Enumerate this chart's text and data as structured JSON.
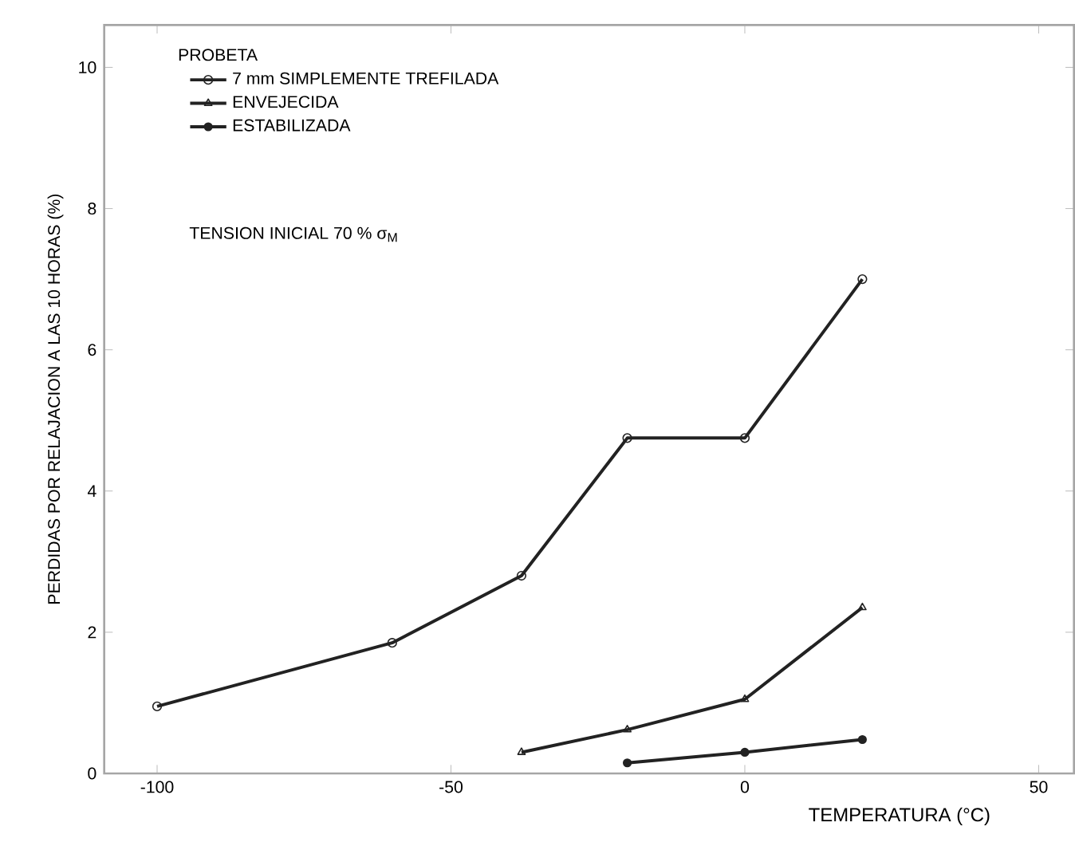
{
  "chart_data": {
    "type": "line",
    "xlabel": "TEMPERATURA (°C)",
    "ylabel": "PERDIDAS POR RELAJACION A LAS 10 HORAS (%)",
    "legend_title": "PROBETA",
    "legend": "top left",
    "annotations": [
      "TENSION INICIAL  70 % σ$_{M}$"
    ],
    "xlim": [
      -109,
      56
    ],
    "ylim": [
      0,
      10.6
    ],
    "xticks": [
      -100,
      -50,
      0,
      50
    ],
    "yticks": [
      0,
      2,
      4,
      6,
      8,
      10
    ],
    "series": [
      {
        "name": "7 mm SIMPLEMENTE TREFILADA",
        "color": "#222222",
        "marker": "circle",
        "x": [
          -100,
          -60,
          -38,
          -20,
          0,
          20
        ],
        "values": [
          0.95,
          1.85,
          2.8,
          4.75,
          4.75,
          7.0
        ]
      },
      {
        "name": "ENVEJECIDA",
        "color": "#222222",
        "marker": "triangle",
        "x": [
          -38,
          -20,
          0,
          20
        ],
        "values": [
          0.3,
          0.62,
          1.05,
          2.35
        ]
      },
      {
        "name": "ESTABILIZADA",
        "color": "#222222",
        "marker": "filled circle",
        "x": [
          -20,
          0,
          20
        ],
        "values": [
          0.15,
          0.3,
          0.48
        ]
      }
    ]
  }
}
